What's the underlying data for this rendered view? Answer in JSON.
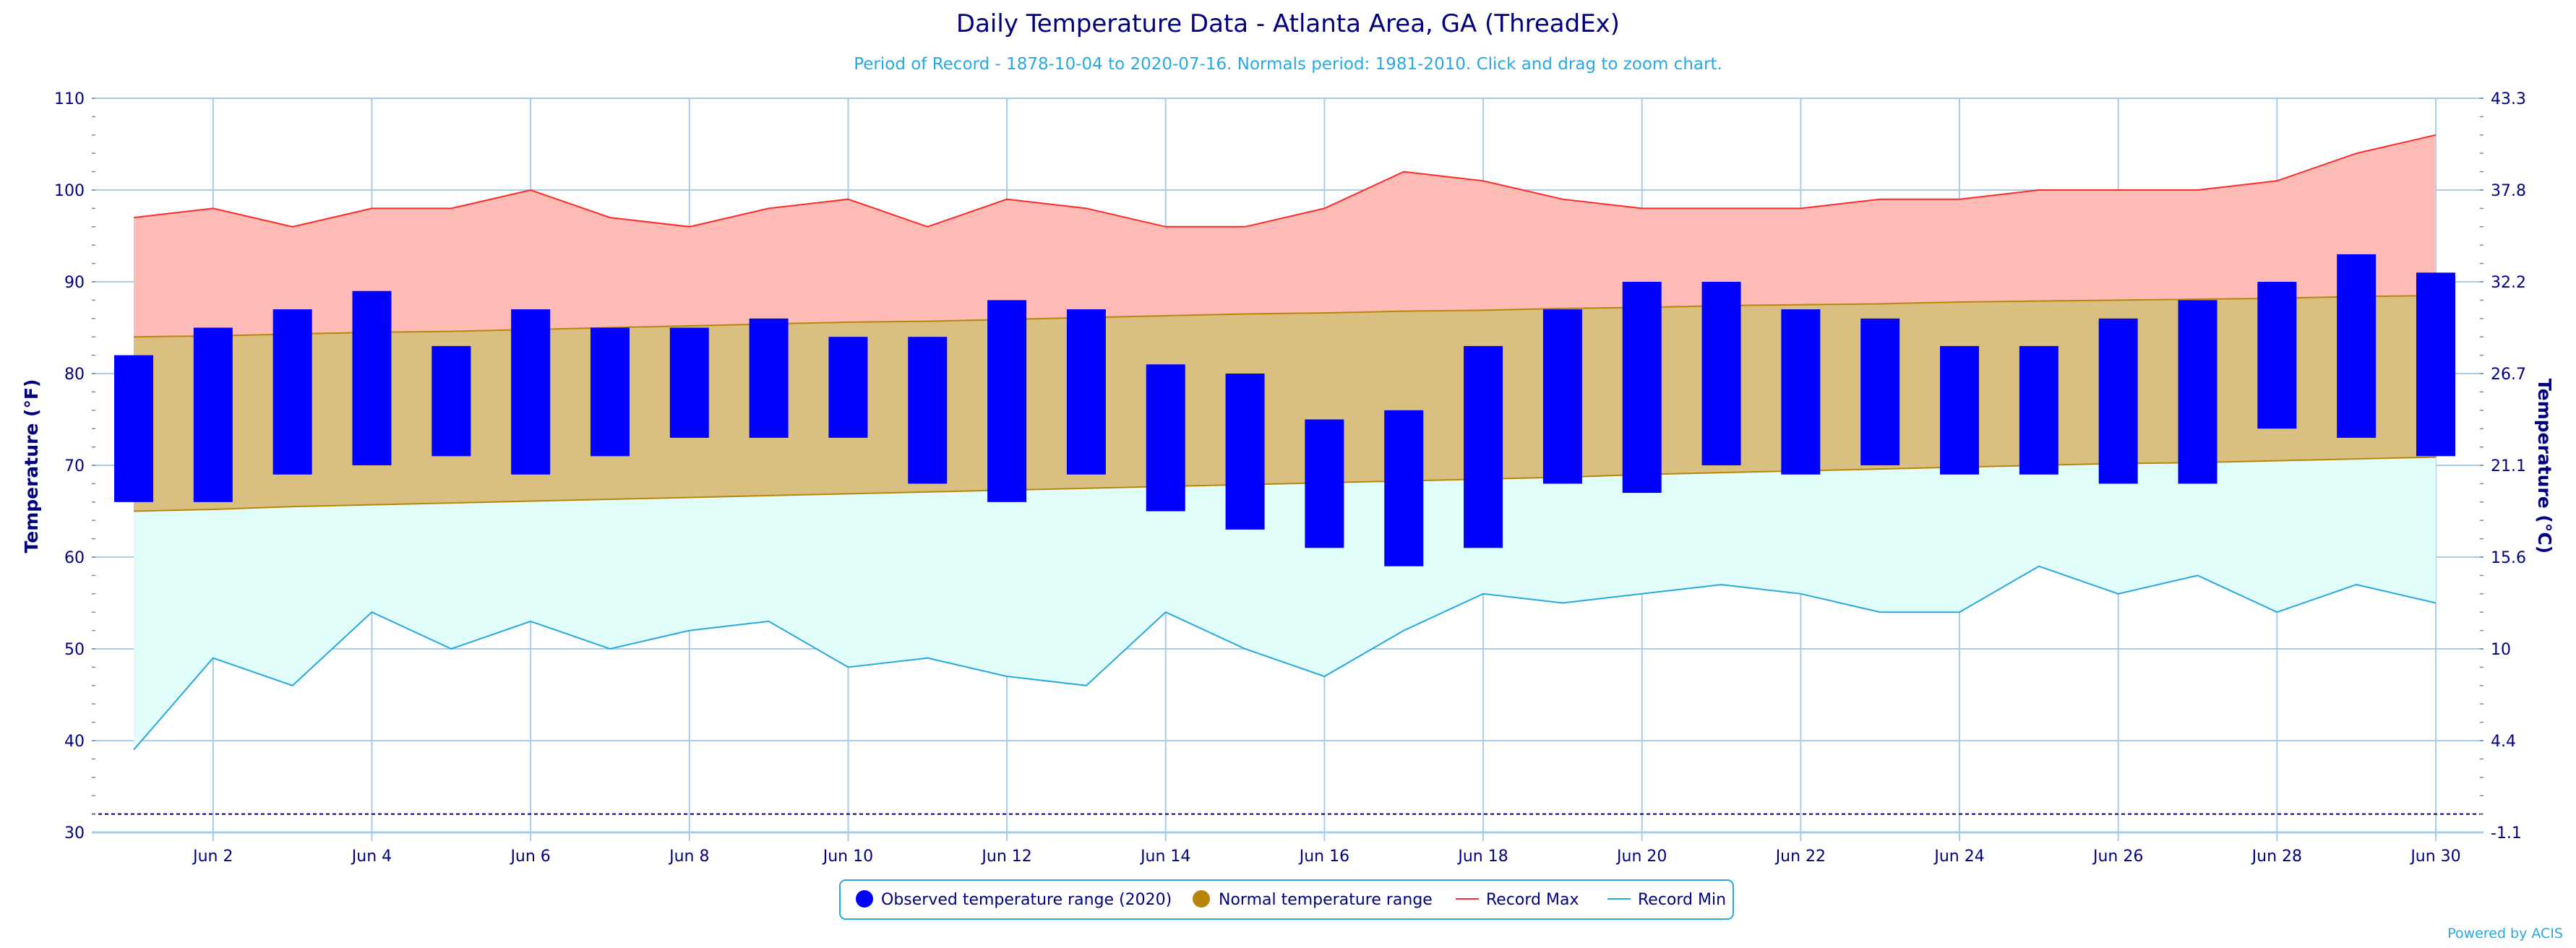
{
  "chart_data": {
    "type": "bar",
    "title": "Daily Temperature Data - Atlanta Area, GA (ThreadEx)",
    "subtitle": "Period of Record - 1878-10-04 to 2020-07-16. Normals period: 1981-2010. Click and drag to zoom chart.",
    "ylabel": "Temperature (°F)",
    "ylabel_right": "Temperature (°C)",
    "ylim": [
      30,
      110
    ],
    "yticks": [
      30,
      40,
      50,
      60,
      70,
      80,
      90,
      100,
      110
    ],
    "yticks_right": [
      "-1.1",
      "4.4",
      "10",
      "15.6",
      "21.1",
      "26.7",
      "32.2",
      "37.8",
      "43.3"
    ],
    "freezing_line": 32,
    "x": [
      1,
      2,
      3,
      4,
      5,
      6,
      7,
      8,
      9,
      10,
      11,
      12,
      13,
      14,
      15,
      16,
      17,
      18,
      19,
      20,
      21,
      22,
      23,
      24,
      25,
      26,
      27,
      28,
      29,
      30
    ],
    "xtick_days": [
      2,
      4,
      6,
      8,
      10,
      12,
      14,
      16,
      18,
      20,
      22,
      24,
      26,
      28,
      30
    ],
    "xtick_labels": [
      "Jun 2",
      "Jun 4",
      "Jun 6",
      "Jun 8",
      "Jun 10",
      "Jun 12",
      "Jun 14",
      "Jun 16",
      "Jun 18",
      "Jun 20",
      "Jun 22",
      "Jun 24",
      "Jun 26",
      "Jun 28",
      "Jun 30"
    ],
    "grid": true,
    "legend_position": "bottom-center",
    "series": [
      {
        "name": "Observed temperature range (2020)",
        "color": "#0000ff",
        "low": [
          66,
          66,
          69,
          70,
          71,
          69,
          71,
          73,
          73,
          73,
          68,
          66,
          69,
          65,
          63,
          61,
          59,
          61,
          68,
          67,
          70,
          69,
          70,
          69,
          69,
          68,
          68,
          74,
          73,
          71
        ],
        "high": [
          82,
          85,
          87,
          89,
          83,
          87,
          85,
          85,
          86,
          84,
          84,
          88,
          87,
          81,
          80,
          75,
          76,
          83,
          87,
          90,
          90,
          87,
          86,
          83,
          83,
          86,
          88,
          90,
          93,
          91
        ]
      },
      {
        "name": "Normal temperature range",
        "color": "#b8860b",
        "low": [
          65,
          65.2,
          65.5,
          65.7,
          65.9,
          66.1,
          66.3,
          66.5,
          66.7,
          66.9,
          67.1,
          67.3,
          67.5,
          67.7,
          67.9,
          68.1,
          68.3,
          68.5,
          68.7,
          69,
          69.2,
          69.4,
          69.6,
          69.8,
          70,
          70.2,
          70.3,
          70.5,
          70.7,
          70.9
        ],
        "high": [
          84,
          84.1,
          84.3,
          84.5,
          84.6,
          84.8,
          85,
          85.2,
          85.4,
          85.6,
          85.7,
          85.9,
          86.1,
          86.3,
          86.5,
          86.6,
          86.8,
          86.9,
          87.1,
          87.2,
          87.4,
          87.5,
          87.6,
          87.8,
          87.9,
          88,
          88.1,
          88.2,
          88.4,
          88.5
        ]
      },
      {
        "name": "Record Max",
        "color": "#ff2a2a",
        "values": [
          97,
          98,
          96,
          98,
          98,
          100,
          97,
          96,
          98,
          99,
          96,
          99,
          98,
          96,
          96,
          98,
          102,
          101,
          99,
          98,
          98,
          98,
          99,
          99,
          100,
          100,
          100,
          101,
          104,
          106
        ]
      },
      {
        "name": "Record Min",
        "color": "#29a8e0",
        "values": [
          39,
          49,
          46,
          54,
          50,
          53,
          50,
          52,
          53,
          48,
          49,
          47,
          46,
          54,
          50,
          47,
          52,
          56,
          55,
          56,
          57,
          56,
          54,
          54,
          59,
          56,
          58,
          54,
          57,
          55
        ]
      }
    ]
  },
  "legend": {
    "observed": "Observed temperature range (2020)",
    "normal": "Normal temperature range",
    "record_max": "Record Max",
    "record_min": "Record Min"
  },
  "colors": {
    "record_fill": "#ffbcb6",
    "normal_fill": "#d9c081",
    "min_fill": "#e0fdfa",
    "gridline": "#a8ccea",
    "text": "#000080"
  },
  "credits": "Powered by ACIS"
}
